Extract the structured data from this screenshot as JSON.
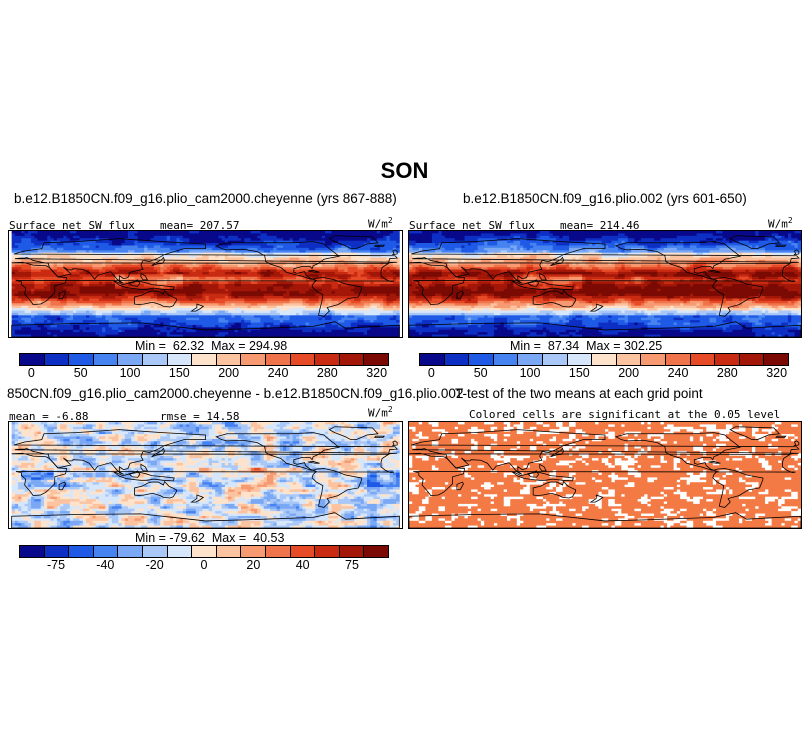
{
  "figure_title": "SON",
  "panels": {
    "p1": {
      "title": "b.e12.B1850CN.f09_g16.plio_cam2000.cheyenne (yrs 867-888)",
      "left_label": "Surface net SW flux",
      "center_label": "mean= 207.57",
      "units_base": "W/m",
      "units_exp": "2",
      "min_label": "Min =",
      "min_value": "62.32",
      "max_label": "Max =",
      "max_value": "294.98"
    },
    "p2": {
      "title": "b.e12.B1850CN.f09_g16.plio.002 (yrs 601-650)",
      "left_label": "Surface net SW flux",
      "center_label": "mean= 214.46",
      "units_base": "W/m",
      "units_exp": "2",
      "min_label": "Min =",
      "min_value": "87.34",
      "max_label": "Max =",
      "max_value": "302.25"
    },
    "p3": {
      "title": "850CN.f09_g16.plio_cam2000.cheyenne - b.e12.B1850CN.f09_g16.plio.002",
      "left_label": "mean =  -6.88",
      "center_label": "rmse =  14.58",
      "units_base": "W/m",
      "units_exp": "2",
      "min_label": "Min =",
      "min_value": "-79.62",
      "max_label": "Max =",
      "max_value": "40.53"
    },
    "p4": {
      "title": "T-test of the two means at each grid point",
      "subtitle": "Colored cells are significant at the 0.05 level"
    }
  },
  "colorbar_abs": {
    "colors": [
      "#08088a",
      "#0d2fc4",
      "#1e5ae6",
      "#4682f0",
      "#7aa8f5",
      "#a9c8f8",
      "#d7e7fb",
      "#fde3cc",
      "#fbc3a0",
      "#f79a72",
      "#f0744b",
      "#e64a26",
      "#c92a12",
      "#a31708",
      "#7a0a03"
    ],
    "ticks": [
      "0",
      "50",
      "100",
      "150",
      "200",
      "240",
      "280",
      "320"
    ]
  },
  "colorbar_diff": {
    "colors": [
      "#08088a",
      "#0d2fc4",
      "#1e5ae6",
      "#4682f0",
      "#7aa8f5",
      "#a9c8f8",
      "#d7e7fb",
      "#fde3cc",
      "#fbc3a0",
      "#f79a72",
      "#f0744b",
      "#e64a26",
      "#c92a12",
      "#a31708",
      "#7a0a03"
    ],
    "ticks": [
      "-75",
      "-40",
      "-20",
      "0",
      "20",
      "40",
      "75"
    ]
  },
  "colors": {
    "significant_fill": "#f47a45",
    "coast": "#000000"
  }
}
